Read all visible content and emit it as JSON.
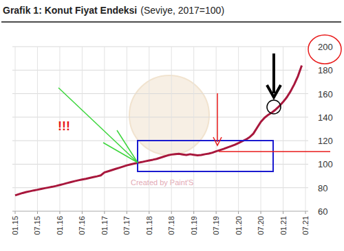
{
  "chart_data": {
    "type": "line",
    "title": "Grafik 1: Konut Fiyat Endeksi",
    "subtitle": "(Seviye, 2017=100)",
    "annotations": [
      "!!!",
      "Created by Paint'S"
    ],
    "categories": [
      "01.15",
      null,
      null,
      null,
      null,
      null,
      "07.15",
      null,
      null,
      null,
      null,
      null,
      "01.16",
      null,
      null,
      null,
      null,
      null,
      "07.16",
      null,
      null,
      null,
      null,
      null,
      "01.17",
      null,
      null,
      null,
      null,
      null,
      "07.17",
      null,
      null,
      null,
      null,
      null,
      "01.18",
      null,
      null,
      null,
      null,
      null,
      "07.18",
      null,
      null,
      null,
      null,
      null,
      "01.19",
      null,
      null,
      null,
      null,
      null,
      "07.19",
      null,
      null,
      null,
      null,
      null,
      "01.20",
      null,
      null,
      null,
      null,
      null,
      "07.20",
      null,
      null,
      null,
      null,
      null,
      "01.21",
      null,
      null,
      null,
      null,
      null,
      "07.21"
    ],
    "values": [
      73.5,
      74.5,
      75.5,
      76.3,
      77.0,
      77.7,
      78.3,
      79.0,
      79.6,
      80.2,
      80.8,
      81.5,
      82.3,
      83.1,
      84.0,
      84.8,
      85.6,
      86.3,
      87.0,
      87.6,
      88.3,
      89.0,
      89.7,
      90.5,
      93.0,
      94.0,
      95.0,
      96.0,
      97.0,
      98.0,
      99.0,
      99.8,
      100.5,
      101.2,
      101.8,
      102.5,
      103.2,
      103.8,
      104.5,
      105.5,
      106.5,
      107.5,
      108.2,
      108.5,
      108.8,
      108.3,
      107.8,
      108.5,
      108.0,
      107.5,
      107.8,
      108.5,
      109.0,
      109.8,
      111.0,
      112.0,
      113.0,
      114.2,
      115.3,
      116.5,
      118.0,
      119.5,
      121.0,
      123.0,
      126.0,
      131.0,
      136.0,
      139.5,
      142.0,
      144.0,
      146.5,
      149.5,
      153.0,
      157.0,
      162.0,
      168.0,
      175.0,
      184.0,
      null
    ],
    "color": "#a8173c",
    "ylim": [
      60,
      200
    ],
    "yticks": [
      60,
      80,
      100,
      120,
      140,
      160,
      180,
      200
    ],
    "grid": true
  }
}
